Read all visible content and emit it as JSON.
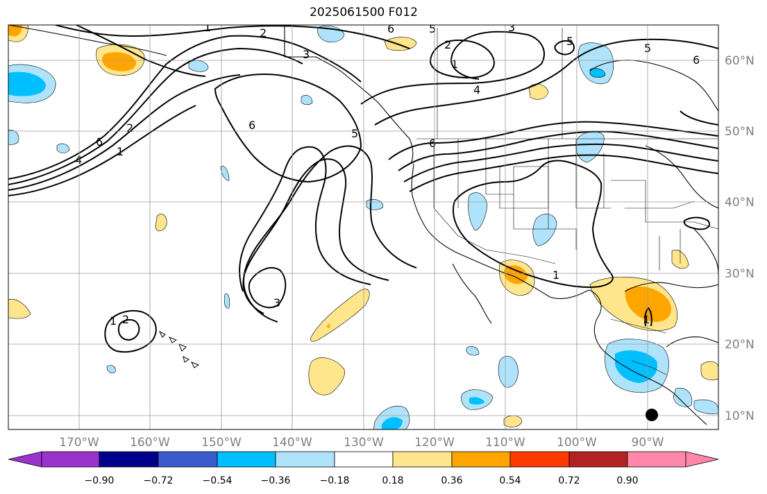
{
  "title": "2025061500 F012",
  "lon_labels": [
    "170°W",
    "160°W",
    "150°W",
    "140°W",
    "130°W",
    "120°W",
    "110°W",
    "100°W",
    "90°W"
  ],
  "lat_labels": [
    "60°N",
    "50°N",
    "40°N",
    "30°N",
    "20°N",
    "10°N"
  ],
  "colorbar": {
    "ticks": [
      "−0.90",
      "−0.72",
      "−0.54",
      "−0.36",
      "−0.18",
      "0.18",
      "0.36",
      "0.54",
      "0.72",
      "0.90"
    ],
    "colors": [
      "#9933cc",
      "#00008b",
      "#3a5bcc",
      "#00bfff",
      "#aee3fb",
      "#ffffff",
      "#ffe68c",
      "#ffa500",
      "#ff3a00",
      "#b22222",
      "#ff88aa"
    ]
  },
  "contour_labels": [
    "1",
    "2",
    "3",
    "4",
    "5",
    "6"
  ],
  "colors": {
    "negative_light": "#aee3fb",
    "negative": "#00bfff",
    "positive_light": "#ffe68c",
    "positive": "#ffa500"
  }
}
